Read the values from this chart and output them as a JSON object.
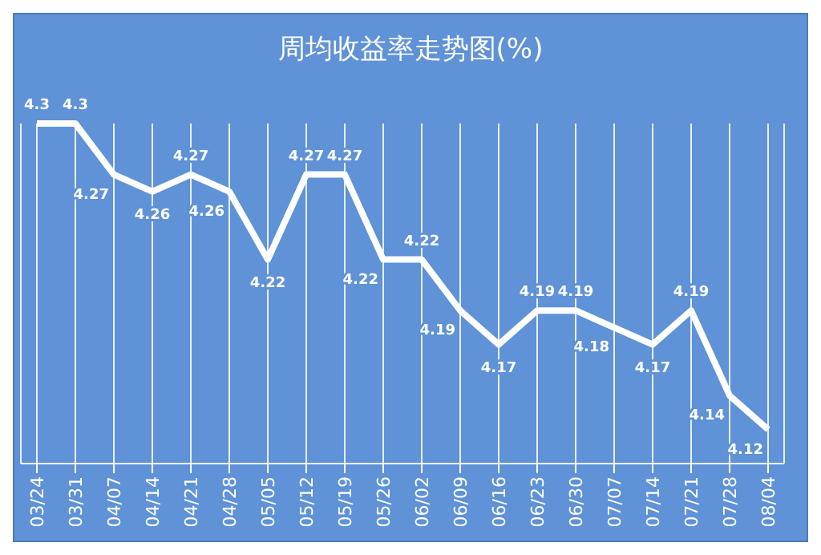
{
  "chart_data": {
    "type": "line",
    "title": "周均收益率走势图(%)",
    "categories": [
      "03/24",
      "03/31",
      "04/07",
      "04/14",
      "04/21",
      "04/28",
      "05/05",
      "05/12",
      "05/19",
      "05/26",
      "06/02",
      "06/09",
      "06/16",
      "06/23",
      "06/30",
      "07/07",
      "07/14",
      "07/21",
      "07/28",
      "08/04"
    ],
    "series": [
      {
        "color": "#ffffff",
        "values": [
          4.3,
          4.3,
          4.27,
          4.26,
          4.27,
          4.26,
          4.22,
          4.27,
          4.27,
          4.22,
          4.22,
          4.19,
          4.17,
          4.19,
          4.19,
          4.18,
          4.17,
          4.19,
          4.14,
          4.12
        ]
      }
    ],
    "data_labels": true,
    "legend": false,
    "grid": "x",
    "tick_labels": "x",
    "marker": "none"
  }
}
